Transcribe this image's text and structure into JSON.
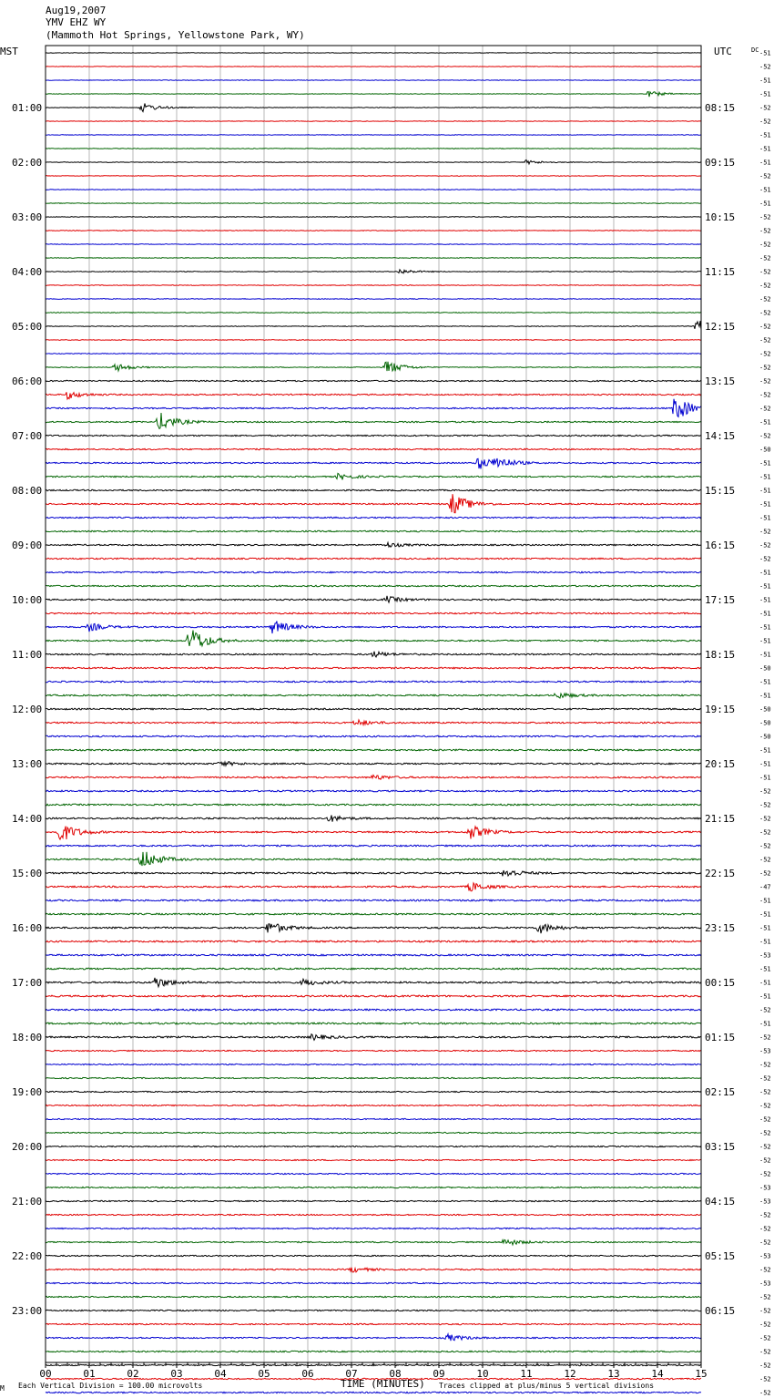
{
  "header": {
    "date": "Aug19,2007",
    "station": "YMV EHZ WY",
    "location": "(Mammoth Hot Springs, Yellowstone Park, WY)"
  },
  "left_zone": "MST",
  "right_zone": "UTC",
  "dc_label": "DC",
  "footer": {
    "corner": "M",
    "scale_note": "Each Vertical Division =  100.00 microvolts",
    "xlabel": "TIME (MINUTES)",
    "clip_note": "Traces clipped at plus/minus 5 vertical divisions"
  },
  "chart_data": {
    "type": "line",
    "title": "",
    "xlabel": "TIME (MINUTES)",
    "xlim": [
      0,
      15
    ],
    "x_ticks": [
      "00",
      "01",
      "02",
      "03",
      "04",
      "05",
      "06",
      "07",
      "08",
      "09",
      "10",
      "11",
      "12",
      "13",
      "14",
      "15"
    ],
    "trace_colors": [
      "#000000",
      "#e00000",
      "#0000d0",
      "#006400"
    ],
    "traces_per_hour": 4,
    "hours_mst": [
      "01:00",
      "02:00",
      "03:00",
      "04:00",
      "05:00",
      "06:00",
      "07:00",
      "08:00",
      "09:00",
      "10:00",
      "11:00",
      "12:00",
      "13:00",
      "14:00",
      "15:00",
      "16:00",
      "17:00",
      "18:00",
      "19:00",
      "20:00",
      "21:00",
      "22:00",
      "23:00"
    ],
    "hours_utc": [
      "08:15",
      "09:15",
      "10:15",
      "11:15",
      "12:15",
      "13:15",
      "14:15",
      "15:15",
      "16:15",
      "17:15",
      "18:15",
      "19:15",
      "20:15",
      "21:15",
      "22:15",
      "23:15",
      "00:15",
      "01:15",
      "02:15",
      "03:15",
      "04:15",
      "05:15",
      "06:15"
    ],
    "dc_offsets": [
      "-51",
      "-52",
      "-51",
      "-51",
      "-52",
      "-52",
      "-51",
      "-51",
      "-51",
      "-52",
      "-51",
      "-51",
      "-52",
      "-52",
      "-52",
      "-52",
      "-52",
      "-52",
      "-52",
      "-52",
      "-52",
      "-52",
      "-52",
      "-52",
      "-52",
      "-52",
      "-52",
      "-51",
      "-52",
      "-50",
      "-51",
      "-51",
      "-51",
      "-51",
      "-51",
      "-52",
      "-52",
      "-52",
      "-51",
      "-51",
      "-51",
      "-51",
      "-51",
      "-51",
      "-51",
      "-50",
      "-51",
      "-51",
      "-50",
      "-50",
      "-50",
      "-51",
      "-51",
      "-51",
      "-52",
      "-52",
      "-52",
      "-52",
      "-52",
      "-52",
      "-52",
      "-47",
      "-51",
      "-51",
      "-51",
      "-51",
      "-53",
      "-51",
      "-51",
      "-51",
      "-52",
      "-51",
      "-52",
      "-53",
      "-52",
      "-52",
      "-52",
      "-52",
      "-52",
      "-52",
      "-52",
      "-52",
      "-52",
      "-53",
      "-53",
      "-52",
      "-52",
      "-52",
      "-53",
      "-52",
      "-53",
      "-52",
      "-52",
      "-52",
      "-52",
      "-52",
      "-52",
      "-52",
      "-52",
      "-51",
      "-52"
    ],
    "events": [
      {
        "trace": 3,
        "minute": 13.8,
        "amp": 0.35
      },
      {
        "trace": 4,
        "minute": 2.2,
        "amp": 0.6
      },
      {
        "trace": 8,
        "minute": 11.0,
        "amp": 0.25
      },
      {
        "trace": 16,
        "minute": 8.1,
        "amp": 0.3
      },
      {
        "trace": 20,
        "minute": 14.9,
        "amp": 0.8
      },
      {
        "trace": 23,
        "minute": 1.6,
        "amp": 0.5
      },
      {
        "trace": 23,
        "minute": 7.8,
        "amp": 0.9
      },
      {
        "trace": 25,
        "minute": 0.5,
        "amp": 0.5
      },
      {
        "trace": 26,
        "minute": 14.4,
        "amp": 1.6
      },
      {
        "trace": 27,
        "minute": 2.6,
        "amp": 1.2
      },
      {
        "trace": 30,
        "minute": 9.9,
        "amp": 0.8
      },
      {
        "trace": 30,
        "minute": 10.3,
        "amp": 0.7
      },
      {
        "trace": 31,
        "minute": 6.7,
        "amp": 0.4
      },
      {
        "trace": 33,
        "minute": 9.3,
        "amp": 1.4
      },
      {
        "trace": 36,
        "minute": 7.8,
        "amp": 0.3
      },
      {
        "trace": 40,
        "minute": 7.8,
        "amp": 0.4
      },
      {
        "trace": 42,
        "minute": 1.0,
        "amp": 0.5
      },
      {
        "trace": 42,
        "minute": 5.2,
        "amp": 0.9
      },
      {
        "trace": 43,
        "minute": 3.3,
        "amp": 1.8
      },
      {
        "trace": 44,
        "minute": 7.5,
        "amp": 0.35
      },
      {
        "trace": 47,
        "minute": 11.7,
        "amp": 0.4
      },
      {
        "trace": 49,
        "minute": 7.1,
        "amp": 0.4
      },
      {
        "trace": 52,
        "minute": 4.0,
        "amp": 0.3
      },
      {
        "trace": 53,
        "minute": 7.5,
        "amp": 0.3
      },
      {
        "trace": 56,
        "minute": 6.5,
        "amp": 0.4
      },
      {
        "trace": 57,
        "minute": 0.3,
        "amp": 1.4
      },
      {
        "trace": 57,
        "minute": 9.7,
        "amp": 0.9
      },
      {
        "trace": 59,
        "minute": 2.2,
        "amp": 1.3
      },
      {
        "trace": 60,
        "minute": 10.5,
        "amp": 0.6
      },
      {
        "trace": 61,
        "minute": 9.7,
        "amp": 0.6
      },
      {
        "trace": 64,
        "minute": 5.1,
        "amp": 0.8
      },
      {
        "trace": 64,
        "minute": 11.3,
        "amp": 0.7
      },
      {
        "trace": 68,
        "minute": 2.5,
        "amp": 0.7
      },
      {
        "trace": 68,
        "minute": 5.9,
        "amp": 0.4
      },
      {
        "trace": 72,
        "minute": 6.1,
        "amp": 0.35
      },
      {
        "trace": 87,
        "minute": 10.5,
        "amp": 0.45
      },
      {
        "trace": 89,
        "minute": 7.0,
        "amp": 0.35
      },
      {
        "trace": 94,
        "minute": 9.2,
        "amp": 0.45
      }
    ]
  }
}
